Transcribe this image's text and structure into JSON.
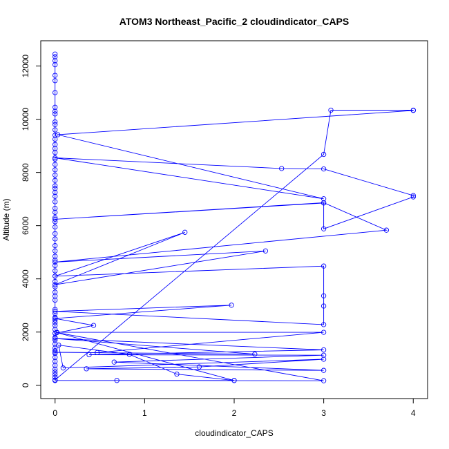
{
  "chart_data": {
    "type": "line",
    "title": "ATOM3 Northeast_Pacific_2 cloudindicator_CAPS",
    "xlabel": "cloudindicator_CAPS",
    "ylabel": "Altitude (m)",
    "xlim": [
      -0.16,
      4.16
    ],
    "ylim": [
      -500,
      12950
    ],
    "xticks": [
      0,
      1,
      2,
      3,
      4
    ],
    "yticks": [
      0,
      2000,
      4000,
      6000,
      8000,
      10000,
      12000
    ],
    "grid": false,
    "series": [
      {
        "marker": "open-circle",
        "color": "#0000ff",
        "x": [
          0,
          0,
          0,
          0,
          0,
          0,
          0,
          0,
          0,
          0,
          0,
          0,
          0,
          0,
          0,
          0,
          0,
          0,
          0,
          0,
          0,
          0,
          0,
          0,
          0,
          0,
          0,
          0,
          0,
          0,
          0,
          0,
          0,
          0,
          0,
          0,
          0,
          0,
          0,
          0,
          0,
          0,
          0,
          0,
          0,
          0,
          0,
          0,
          0,
          0,
          0,
          0,
          0,
          0,
          0,
          0,
          0,
          0,
          0,
          0,
          0,
          0,
          0,
          0,
          0,
          0,
          0,
          0,
          0,
          3,
          3.08,
          4,
          4,
          0.03,
          3,
          0,
          2.53,
          3,
          4,
          4,
          3,
          3,
          0,
          3,
          3.7,
          0,
          2.35,
          0,
          1.45,
          0,
          3,
          3,
          3,
          3,
          0,
          1.97,
          0,
          0.43,
          0,
          0.02,
          3,
          0.47,
          0,
          2.23,
          0,
          3,
          0.38,
          3,
          0.66,
          3,
          0.35,
          1.61,
          3,
          0.09,
          0.04,
          0.83,
          1.36,
          2,
          0.69,
          0,
          3,
          0.02,
          2,
          0
        ],
        "y": [
          12450,
          12350,
          12200,
          12050,
          11650,
          11450,
          11000,
          10450,
          10300,
          10200,
          9900,
          9800,
          9600,
          9400,
          9250,
          9050,
          8900,
          8750,
          8500,
          8300,
          8100,
          7900,
          7700,
          7500,
          7400,
          7250,
          7100,
          6900,
          6650,
          6500,
          6300,
          6150,
          5950,
          5700,
          5500,
          5250,
          5050,
          4850,
          4700,
          4500,
          4300,
          4100,
          3900,
          3700,
          3500,
          3350,
          3200,
          2850,
          2700,
          2550,
          2450,
          2350,
          2250,
          2100,
          1950,
          1800,
          1700,
          1550,
          1400,
          1300,
          1200,
          1050,
          900,
          750,
          600,
          500,
          400,
          300,
          200,
          8680,
          10340,
          10340,
          10330,
          9420,
          7010,
          8550,
          8150,
          8130,
          7130,
          7080,
          5880,
          6850,
          6240,
          6860,
          5830,
          4630,
          5050,
          3780,
          5750,
          4100,
          4480,
          3360,
          2980,
          2280,
          2780,
          3010,
          2510,
          2250,
          1950,
          1990,
          1990,
          1230,
          1240,
          1170,
          1760,
          1330,
          1150,
          1130,
          870,
          560,
          620,
          690,
          980,
          650,
          1510,
          1160,
          420,
          180,
          180,
          180,
          170,
          1980,
          180,
          180
        ]
      }
    ]
  }
}
